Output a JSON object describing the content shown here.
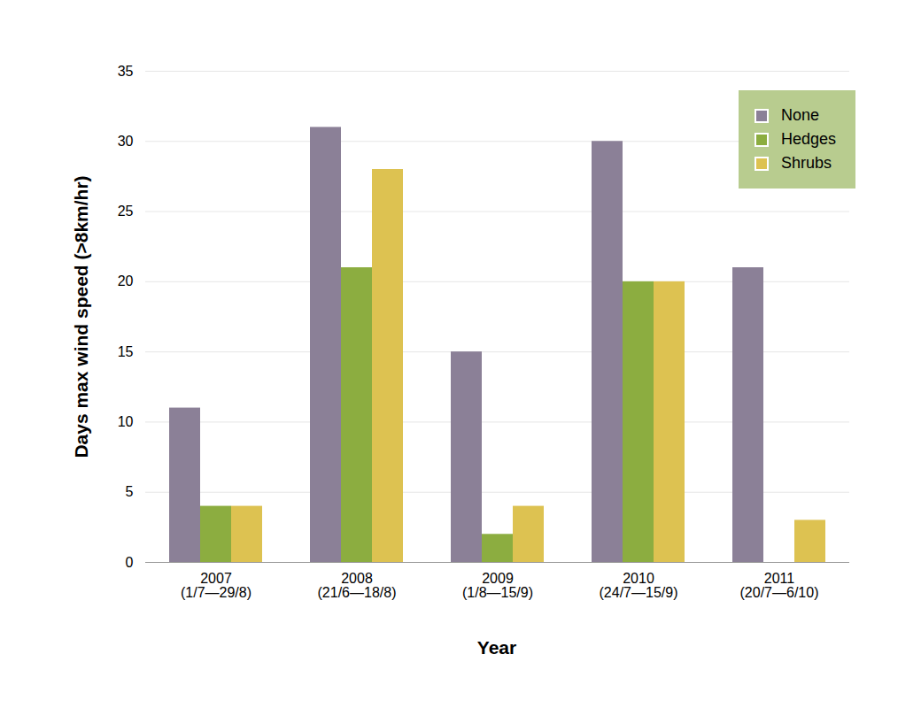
{
  "chart_data": {
    "type": "bar",
    "categories": [
      "2007\n(1/7—29/8)",
      "2008\n(21/6—18/8)",
      "2009\n(1/8—15/9)",
      "2010\n(24/7—15/9)",
      "2011\n(20/7—6/10)"
    ],
    "series": [
      {
        "name": "None",
        "color": "#8b8097",
        "values": [
          11,
          31,
          15,
          30,
          21
        ]
      },
      {
        "name": "Hedges",
        "color": "#8cad40",
        "values": [
          4,
          21,
          2,
          20,
          0
        ]
      },
      {
        "name": "Shrubs",
        "color": "#ddc251",
        "values": [
          4,
          28,
          4,
          20,
          3
        ]
      }
    ],
    "x_label": "Year",
    "y_label": "Days max wind speed (>8km/hr)",
    "ylim": [
      0,
      35
    ],
    "yticks": [
      0,
      5,
      10,
      15,
      20,
      25,
      30,
      35
    ],
    "grid": true,
    "legend": "top-right"
  }
}
